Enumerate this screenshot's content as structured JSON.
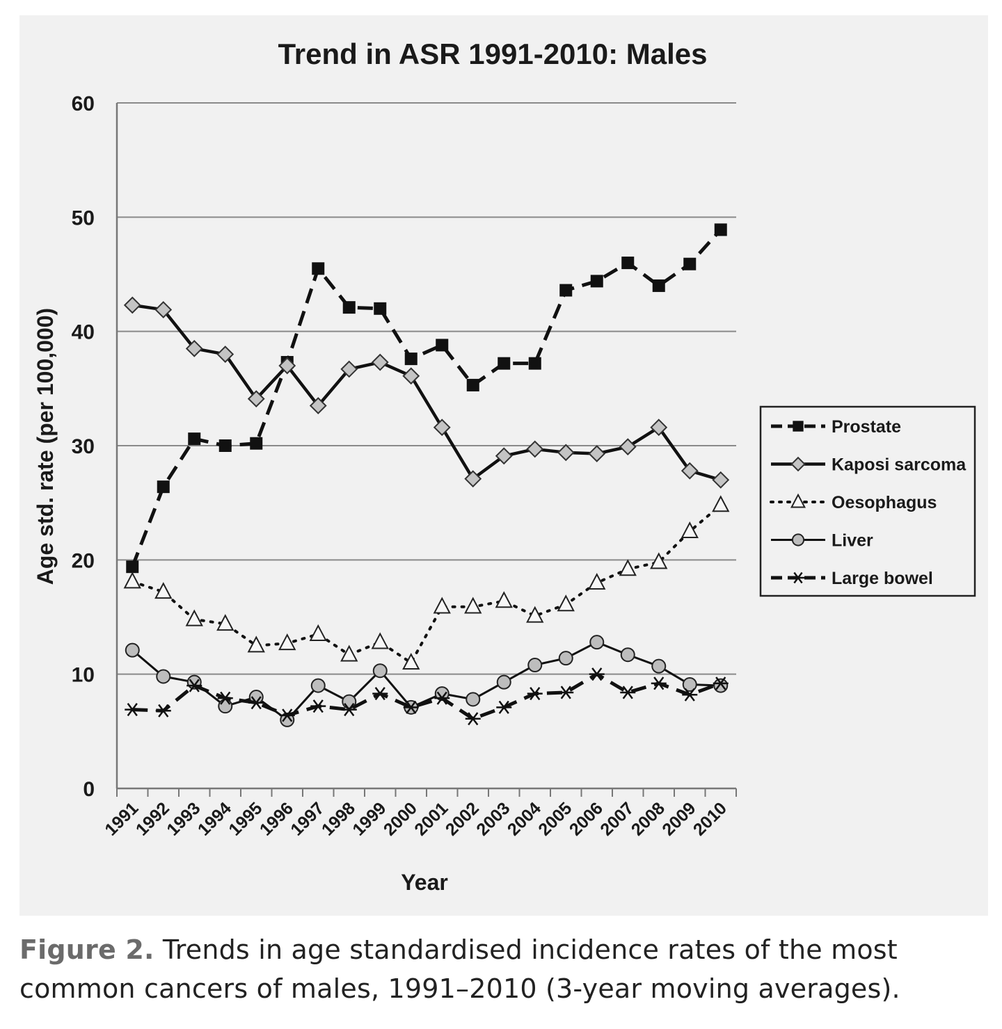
{
  "caption": {
    "label": "Figure 2.",
    "text": " Trends in age standardised incidence rates of the most common cancers of males, 1991–2010 (3-year moving averages)."
  },
  "chart_data": {
    "type": "line",
    "title": "Trend in ASR 1991-2010: Males",
    "xlabel": "Year",
    "ylabel": "Age std. rate (per 100,000)",
    "ylim": [
      0,
      60
    ],
    "yticks": [
      0,
      10,
      20,
      30,
      40,
      50,
      60
    ],
    "grid": "horizontal",
    "legend_position": "right",
    "categories": [
      "1991",
      "1992",
      "1993",
      "1994",
      "1995",
      "1996",
      "1997",
      "1998",
      "1999",
      "2000",
      "2001",
      "2002",
      "2003",
      "2004",
      "2005",
      "2006",
      "2007",
      "2008",
      "2009",
      "2010"
    ],
    "series": [
      {
        "name": "Prostate",
        "style": "dashed",
        "marker": "square",
        "values": [
          19.4,
          26.4,
          30.6,
          30.0,
          30.2,
          37.3,
          45.5,
          42.1,
          42.0,
          37.6,
          38.8,
          35.3,
          37.2,
          37.2,
          43.6,
          44.4,
          46.0,
          44.0,
          45.9,
          48.9
        ]
      },
      {
        "name": "Kaposi sarcoma",
        "style": "solid-bold",
        "marker": "diamond",
        "values": [
          42.3,
          41.9,
          38.5,
          38.0,
          34.1,
          37.0,
          33.5,
          36.7,
          37.3,
          36.1,
          31.6,
          27.1,
          29.1,
          29.7,
          29.4,
          29.3,
          29.9,
          31.6,
          27.8,
          27.0
        ]
      },
      {
        "name": "Oesophagus",
        "style": "dotted",
        "marker": "triangle",
        "values": [
          18.1,
          17.2,
          14.8,
          14.4,
          12.5,
          12.7,
          13.5,
          11.7,
          12.8,
          11.0,
          15.9,
          15.9,
          16.4,
          15.1,
          16.1,
          18.0,
          19.2,
          19.8,
          22.5,
          24.8
        ]
      },
      {
        "name": "Liver",
        "style": "solid",
        "marker": "circle",
        "values": [
          12.1,
          9.8,
          9.3,
          7.2,
          8.0,
          6.0,
          9.0,
          7.6,
          10.3,
          7.1,
          8.3,
          7.8,
          9.3,
          10.8,
          11.4,
          12.8,
          11.7,
          10.7,
          9.1,
          9.0
        ]
      },
      {
        "name": "Large bowel",
        "style": "dashed",
        "marker": "asterisk",
        "values": [
          6.9,
          6.8,
          9.0,
          7.9,
          7.5,
          6.4,
          7.2,
          6.9,
          8.3,
          7.1,
          7.9,
          6.1,
          7.1,
          8.3,
          8.4,
          10.0,
          8.4,
          9.2,
          8.2,
          9.2
        ]
      }
    ]
  }
}
